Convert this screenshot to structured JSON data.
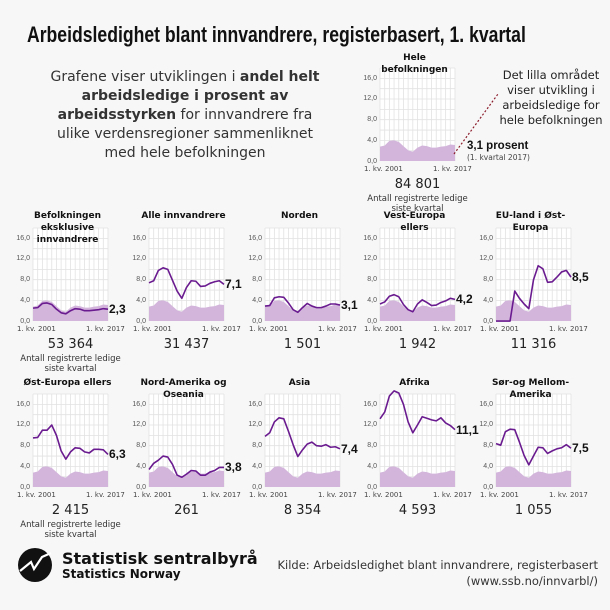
{
  "title": "Arbeidsledighet blant innvandrere, registerbasert, 1. kvartal",
  "intro": {
    "part1": "Grafene viser utviklingen i ",
    "bold": "andel helt arbeidsledige i prosent av arbeidsstyrken",
    "part2": " for innvandrere fra ulike verdensregioner sammenliknet med hele befolkningen"
  },
  "annotation": "Det lilla området viser utvikling i arbeidsledige for hele befolkningen",
  "count_caption": "Antall registrerte ledige siste kvartal",
  "colors": {
    "line": "#6a1b8f",
    "area": "#d3b5dc",
    "grid": "#e2e2e2",
    "background": "#f7f7f7"
  },
  "chart_data": {
    "type": "line",
    "x": [
      "2001",
      "2002",
      "2003",
      "2004",
      "2005",
      "2006",
      "2007",
      "2008",
      "2009",
      "2010",
      "2011",
      "2012",
      "2013",
      "2014",
      "2015",
      "2016",
      "2017"
    ],
    "x_tick_labels": [
      "1. kv. 2001",
      "1. kv. 2017"
    ],
    "y_tick_labels": [
      "0,0",
      "4,0",
      "8,0",
      "12,0",
      "16,0"
    ],
    "ylim": [
      0,
      18
    ],
    "grid": true,
    "area_series": {
      "name": "Hele befolkningen",
      "values": [
        2.8,
        3.0,
        3.9,
        4.0,
        3.7,
        2.9,
        2.1,
        1.8,
        2.6,
        3.0,
        2.9,
        2.6,
        2.6,
        2.8,
        2.9,
        3.2,
        3.1
      ]
    },
    "overview": {
      "title": "Hele befolkningen",
      "end_label": "3,1 prosent",
      "end_sub": "(1. kvartal 2017)",
      "count": "84 801"
    },
    "panels": [
      {
        "title": "Befolkningen eksklusive innvandrere",
        "end_label": "2,3",
        "count": "53 364",
        "values": [
          2.5,
          2.6,
          3.4,
          3.5,
          3.2,
          2.3,
          1.6,
          1.4,
          2.0,
          2.4,
          2.3,
          2.0,
          2.0,
          2.1,
          2.2,
          2.4,
          2.3
        ]
      },
      {
        "title": "Alle innvandrere",
        "end_label": "7,1",
        "count": "31 437",
        "values": [
          7.4,
          7.8,
          9.8,
          10.3,
          10.0,
          7.9,
          5.8,
          4.4,
          6.5,
          7.8,
          7.7,
          6.7,
          6.8,
          7.3,
          7.6,
          7.8,
          7.1
        ]
      },
      {
        "title": "Norden",
        "end_label": "3,1",
        "count": "1 501",
        "values": [
          2.9,
          3.0,
          4.5,
          4.7,
          4.6,
          3.5,
          2.2,
          1.7,
          2.6,
          3.4,
          2.9,
          2.6,
          2.6,
          2.9,
          3.3,
          3.3,
          3.1
        ]
      },
      {
        "title": "Vest-Europa ellers",
        "end_label": "4,2",
        "count": "1 942",
        "values": [
          3.3,
          3.7,
          4.8,
          5.1,
          4.7,
          3.2,
          2.2,
          1.8,
          3.3,
          4.1,
          3.6,
          3.0,
          3.1,
          3.6,
          3.9,
          4.4,
          4.2
        ]
      },
      {
        "title": "EU-land i Øst-Europa",
        "end_label": "8,5",
        "count": "11 316",
        "values": [
          0,
          0,
          0,
          0,
          5.8,
          4.4,
          3.3,
          2.4,
          8.0,
          10.7,
          10.1,
          7.5,
          7.6,
          8.5,
          9.5,
          9.8,
          8.5
        ]
      },
      {
        "title": "Øst-Europa ellers",
        "end_label": "6,3",
        "count": "2 415",
        "values": [
          9.5,
          9.6,
          11.0,
          11.0,
          12.0,
          10.0,
          7.0,
          5.4,
          6.8,
          7.6,
          7.5,
          6.8,
          6.6,
          7.3,
          7.3,
          7.2,
          6.3
        ]
      },
      {
        "title": "Nord-Amerika og Oseania",
        "end_label": "3,8",
        "count": "261",
        "values": [
          3.4,
          4.6,
          5.2,
          6.0,
          5.8,
          4.4,
          2.3,
          1.9,
          2.5,
          3.2,
          3.1,
          2.3,
          2.3,
          2.9,
          3.2,
          3.8,
          3.8
        ]
      },
      {
        "title": "Asia",
        "end_label": "7,4",
        "count": "8 354",
        "values": [
          9.8,
          10.5,
          12.6,
          13.4,
          13.2,
          10.8,
          8.2,
          5.9,
          7.2,
          8.3,
          8.7,
          8.0,
          7.9,
          8.2,
          7.7,
          7.8,
          7.4
        ]
      },
      {
        "title": "Afrika",
        "end_label": "11,1",
        "count": "4 593",
        "values": [
          13.2,
          14.5,
          17.6,
          18.6,
          18.2,
          16.0,
          12.6,
          10.5,
          12.0,
          13.6,
          13.3,
          13.0,
          12.8,
          13.4,
          12.4,
          11.9,
          11.1
        ]
      },
      {
        "title": "Sør-og Mellom-Amerika",
        "end_label": "7,5",
        "count": "1 055",
        "values": [
          8.4,
          8.1,
          10.7,
          11.2,
          11.1,
          8.7,
          6.1,
          4.3,
          6.0,
          7.7,
          7.6,
          6.5,
          7.0,
          7.4,
          7.6,
          8.2,
          7.5
        ]
      }
    ]
  },
  "footer": {
    "logo_name": "Statistisk sentralbyrå",
    "logo_sub": "Statistics Norway",
    "source_line1": "Kilde: Arbeidsledighet blant innvandrere, registerbasert",
    "source_line2": "(www.ssb.no/innvarbl/)"
  }
}
